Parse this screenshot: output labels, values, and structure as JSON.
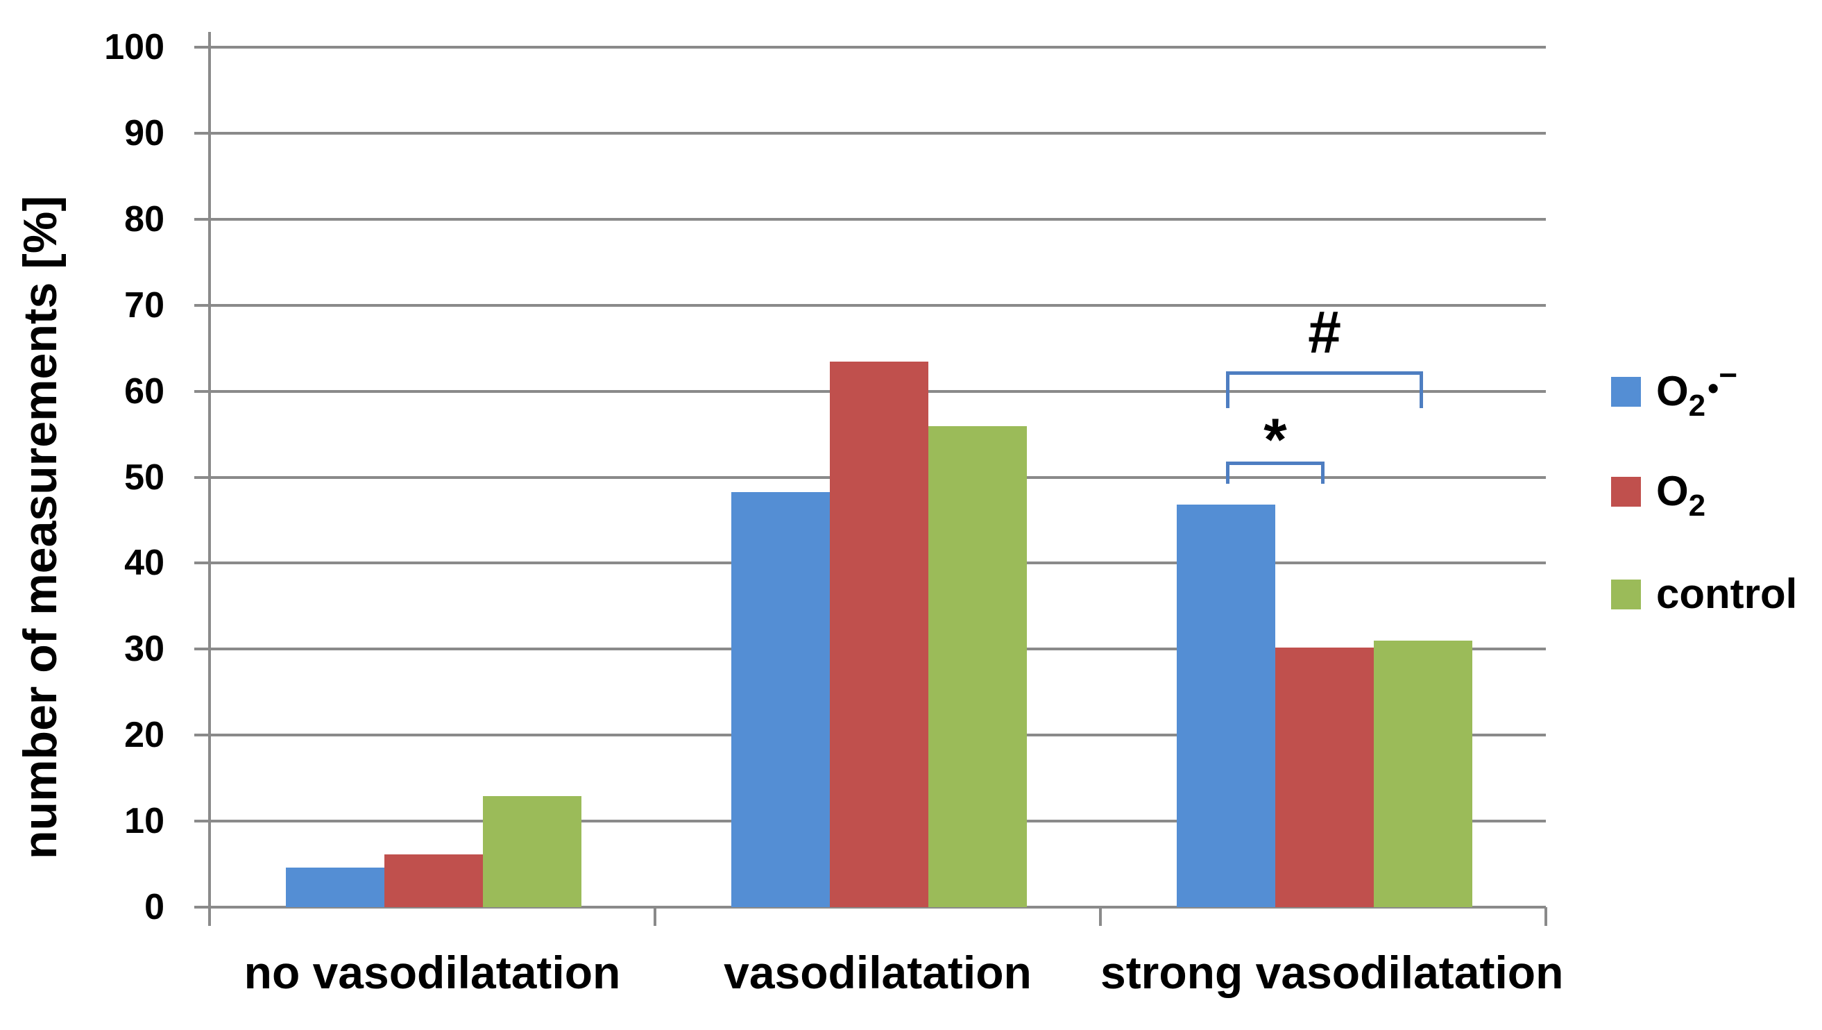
{
  "figure": {
    "background": "#ffffff"
  },
  "chart_data": {
    "type": "bar",
    "title": "",
    "xlabel": "",
    "ylabel": "number of measurements [%]",
    "ylim": [
      0,
      100
    ],
    "y_tick_step": 10,
    "y_tick_labels": [
      "0",
      "10",
      "20",
      "30",
      "40",
      "50",
      "60",
      "70",
      "80",
      "90",
      "100"
    ],
    "categories": [
      "no vasodilatation",
      "vasodilatation",
      "strong vasodilatation"
    ],
    "series": [
      {
        "name": "O2•−",
        "color": "#548ED4",
        "values": [
          4.6,
          48.3,
          46.8
        ]
      },
      {
        "name": "O2",
        "color": "#C0504D",
        "values": [
          6.1,
          63.4,
          30.2
        ]
      },
      {
        "name": "control",
        "color": "#9BBB59",
        "values": [
          12.9,
          55.9,
          31.0
        ]
      }
    ],
    "grid": true,
    "gridline_color": "#8a8a8a",
    "legend_position": "right",
    "annotations": [
      {
        "symbol": "*",
        "category_index": 2,
        "from_series": 0,
        "to_series": 1,
        "line_value": 51.8,
        "tick_drop_value": 2.6,
        "color": "#4E7EC1"
      },
      {
        "symbol": "#",
        "category_index": 2,
        "from_series": 0,
        "to_series": 2,
        "line_value": 62.3,
        "tick_drop_value": 4.3,
        "color": "#4E7EC1"
      }
    ]
  },
  "legend": {
    "items": [
      {
        "swatch_color": "#548ED4",
        "base": "O",
        "sub": "2",
        "bullet": "•",
        "sup": "−"
      },
      {
        "swatch_color": "#C0504D",
        "base": "O",
        "sub": "2",
        "bullet": "",
        "sup": ""
      },
      {
        "swatch_color": "#9BBB59",
        "base": "control",
        "sub": "",
        "bullet": "",
        "sup": ""
      }
    ]
  }
}
